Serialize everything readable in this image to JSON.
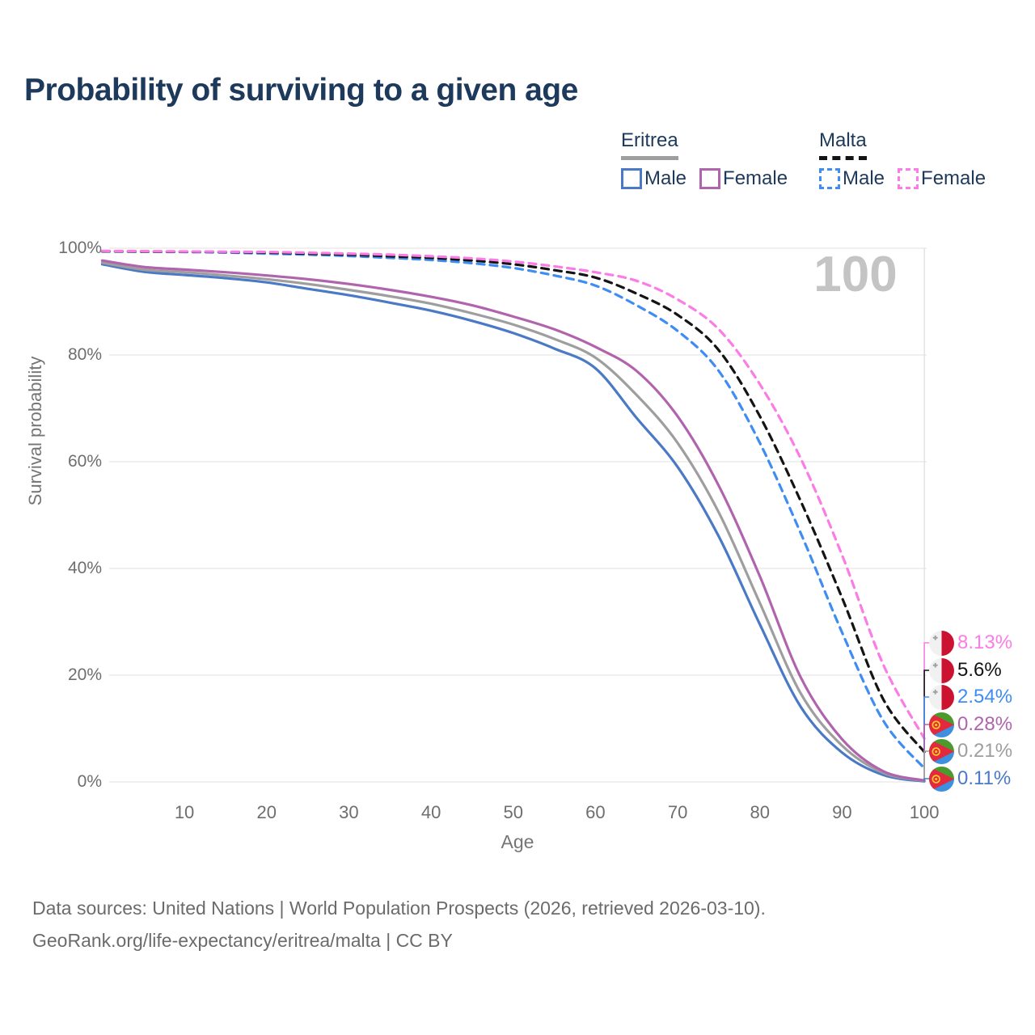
{
  "header": {
    "title": "Probability of surviving to a given age"
  },
  "legend": {
    "groups": [
      {
        "country": "Eritrea",
        "style": "solid",
        "items": [
          {
            "label": "Male"
          },
          {
            "label": "Female"
          }
        ]
      },
      {
        "country": "Malta",
        "style": "dashed",
        "items": [
          {
            "label": "Male"
          },
          {
            "label": "Female"
          }
        ]
      }
    ]
  },
  "watermark": {
    "hover_age": "100"
  },
  "axes": {
    "x_label": "Age",
    "y_label": "Survival probability"
  },
  "footer": {
    "line1": "Data sources: United Nations | World Population Prospects (2026, retrieved 2026-03-10).",
    "line2": "GeoRank.org/life-expectancy/eritrea/malta | CC BY"
  },
  "colors": {
    "title": "#1d3a5c",
    "tick_text": "#6e6e6e",
    "grid": "#e8e8e8",
    "hover_line": "#dcdcdc",
    "watermark": "#c4c4c4",
    "footer_text": "#6b6b6b"
  },
  "chart_data": {
    "type": "line",
    "title": "Probability of surviving to a given age",
    "xlabel": "Age",
    "ylabel": "Survival probability",
    "xlim": [
      0,
      100
    ],
    "ylim": [
      0,
      100
    ],
    "grid": true,
    "legend_position": "top-right",
    "hover_age": 100,
    "x_ticks": [
      10,
      20,
      30,
      40,
      50,
      60,
      70,
      80,
      90,
      100
    ],
    "x_tick_labels": [
      "10",
      "20",
      "30",
      "40",
      "50",
      "60",
      "70",
      "80",
      "90",
      "100"
    ],
    "y_ticks": [
      100,
      80,
      60,
      40,
      20,
      0
    ],
    "y_tick_labels": [
      "100%",
      "80%",
      "60%",
      "40%",
      "20%",
      "0%"
    ],
    "x": [
      0,
      5,
      10,
      15,
      20,
      25,
      30,
      35,
      40,
      45,
      50,
      55,
      60,
      65,
      70,
      75,
      80,
      85,
      90,
      95,
      100
    ],
    "series": [
      {
        "name": "Malta — Female",
        "country": "Malta",
        "sex": "Female",
        "color": "#fb7ce4",
        "dashed": true,
        "flag": "malta",
        "end_label": "8.13%",
        "values": [
          99.5,
          99.45,
          99.4,
          99.35,
          99.3,
          99.15,
          99.0,
          98.8,
          98.5,
          98.1,
          97.5,
          96.6,
          95.5,
          93.9,
          90.4,
          84.8,
          74.5,
          60.5,
          42.5,
          22.0,
          8.13
        ]
      },
      {
        "name": "Malta — Both sexes",
        "country": "Malta",
        "sex": "Both sexes",
        "color": "#141414",
        "dashed": true,
        "flag": "malta",
        "end_label": "5.6%",
        "values": [
          99.45,
          99.4,
          99.35,
          99.3,
          99.2,
          99.0,
          98.8,
          98.5,
          98.2,
          97.7,
          97.0,
          95.9,
          94.5,
          91.5,
          87.5,
          80.9,
          68.5,
          52.5,
          34.5,
          15.5,
          5.6
        ]
      },
      {
        "name": "Malta — Male",
        "country": "Malta",
        "sex": "Male",
        "color": "#3f8df2",
        "dashed": true,
        "flag": "malta",
        "end_label": "2.54%",
        "values": [
          99.4,
          99.35,
          99.3,
          99.2,
          99.0,
          98.8,
          98.55,
          98.2,
          97.8,
          97.2,
          96.3,
          94.9,
          93.0,
          89.3,
          84.5,
          77.0,
          63.5,
          46.5,
          28.0,
          11.5,
          2.54
        ]
      },
      {
        "name": "Eritrea — Female",
        "country": "Eritrea",
        "sex": "Female",
        "color": "#b164ae",
        "dashed": false,
        "flag": "eritrea",
        "end_label": "0.28%",
        "values": [
          97.7,
          96.5,
          96.0,
          95.5,
          94.9,
          94.2,
          93.3,
          92.2,
          90.9,
          89.3,
          87.2,
          84.8,
          81.5,
          77.0,
          68.5,
          55.5,
          38.5,
          19.5,
          8.0,
          2.0,
          0.28
        ]
      },
      {
        "name": "Eritrea — Both sexes",
        "country": "Eritrea",
        "sex": "Both sexes",
        "color": "#9e9e9e",
        "dashed": false,
        "flag": "eritrea",
        "end_label": "0.21%",
        "values": [
          97.3,
          96.0,
          95.5,
          94.9,
          94.2,
          93.3,
          92.2,
          91.0,
          89.6,
          87.8,
          85.7,
          83.0,
          79.5,
          72.5,
          63.5,
          50.5,
          33.5,
          16.5,
          6.8,
          1.7,
          0.21
        ]
      },
      {
        "name": "Eritrea — Male",
        "country": "Eritrea",
        "sex": "Male",
        "color": "#4a79c6",
        "dashed": false,
        "flag": "eritrea",
        "end_label": "0.11%",
        "values": [
          97.0,
          95.6,
          95.0,
          94.4,
          93.6,
          92.4,
          91.2,
          89.8,
          88.3,
          86.4,
          84.1,
          81.2,
          77.5,
          68.2,
          59.0,
          46.0,
          29.5,
          14.0,
          5.5,
          1.3,
          0.11
        ]
      }
    ]
  }
}
